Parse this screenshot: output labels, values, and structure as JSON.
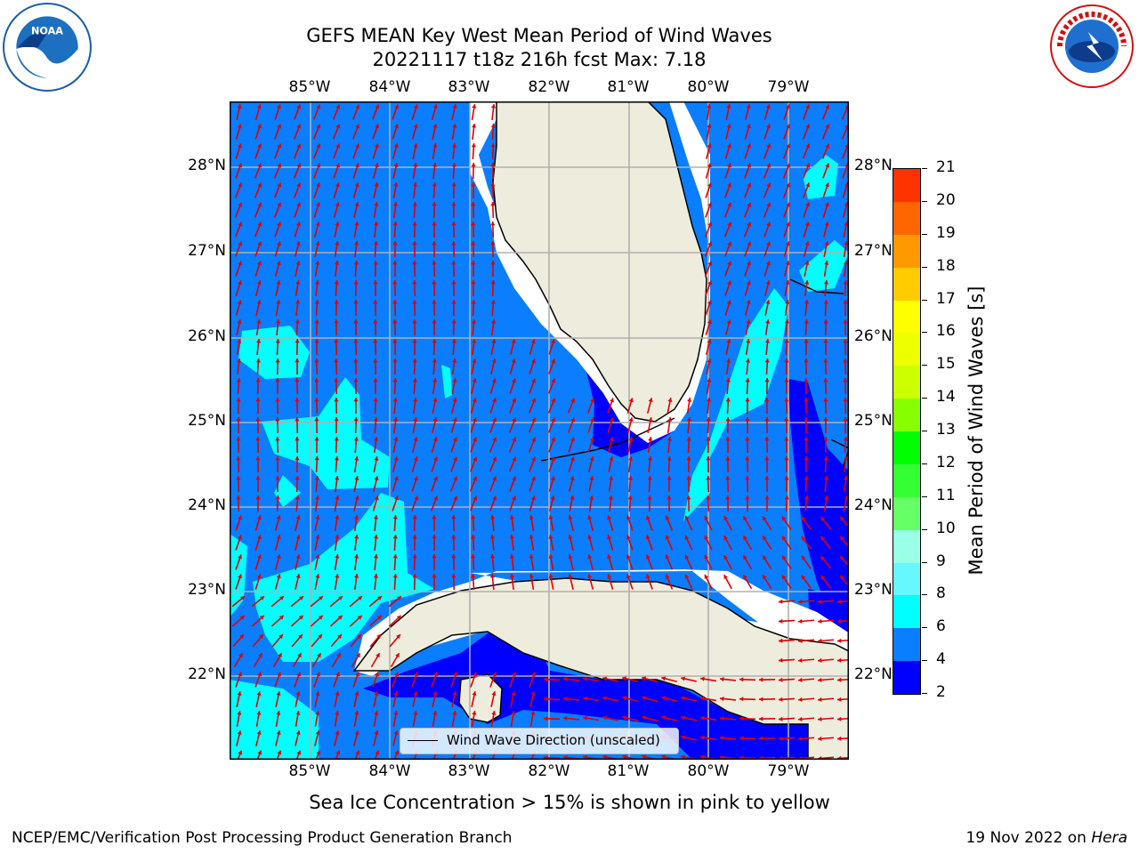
{
  "title": {
    "line1": "GEFS MEAN Key West Mean Period of Wind Waves",
    "line2": "20221117 t18z 216h fcst   Max: 7.18"
  },
  "logos": {
    "left": "NOAA",
    "right": "NATIONAL WEATHER SERVICE"
  },
  "map": {
    "lon_labels": [
      "85°W",
      "84°W",
      "83°W",
      "82°W",
      "81°W",
      "80°W",
      "79°W"
    ],
    "lat_labels": [
      "28°N",
      "27°N",
      "26°N",
      "25°N",
      "24°N",
      "23°N",
      "22°N"
    ],
    "legend": "Wind Wave Direction (unscaled)",
    "colors": {
      "land": "#eeecdc",
      "ocean_4_6": "#0a7eff",
      "ocean_2_4": "#0000ff",
      "ocean_6_8": "#00ffff",
      "arrows": "#e00000"
    }
  },
  "colorbar": {
    "label": "Mean Period of Wind Waves [s]",
    "ticks": [
      "2",
      "4",
      "6",
      "8",
      "9",
      "10",
      "11",
      "12",
      "13",
      "14",
      "15",
      "16",
      "17",
      "18",
      "19",
      "20",
      "21"
    ],
    "colors": [
      "#0000ff",
      "#0a7eff",
      "#00ffff",
      "#66f7ff",
      "#99ffe6",
      "#66ff66",
      "#33ff33",
      "#00ff00",
      "#88ff00",
      "#ccff00",
      "#eeff00",
      "#ffff00",
      "#ffcc00",
      "#ff9900",
      "#ff6600",
      "#ff3300",
      "#ff0000"
    ]
  },
  "note": "Sea Ice Concentration > 15% is shown in pink to yellow",
  "footer": {
    "left": "NCEP/EMC/Verification Post Processing Product Generation Branch",
    "right_date": "19 Nov 2022 on",
    "right_host": "Hera"
  }
}
